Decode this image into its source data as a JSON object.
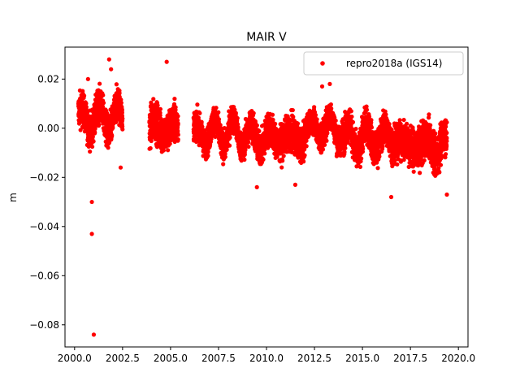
{
  "chart_data": {
    "type": "scatter",
    "title": "MAIR V",
    "xlabel": "",
    "ylabel": "m",
    "xlim": [
      1999.5,
      2020.5
    ],
    "ylim": [
      -0.089,
      0.033
    ],
    "xticks": [
      2000.0,
      2002.5,
      2005.0,
      2007.5,
      2010.0,
      2012.5,
      2015.0,
      2017.5,
      2020.0
    ],
    "xtick_labels": [
      "2000.0",
      "2002.5",
      "2005.0",
      "2007.5",
      "2010.0",
      "2012.5",
      "2015.0",
      "2017.5",
      "2020.0"
    ],
    "yticks": [
      0.02,
      0.0,
      -0.02,
      -0.04,
      -0.06,
      -0.08
    ],
    "ytick_labels": [
      "0.02",
      "0.00",
      "−0.02",
      "−0.04",
      "−0.06",
      "−0.08"
    ],
    "grid": false,
    "legend_position": "top-right",
    "series": [
      {
        "name": "repro2018a (IGS14)",
        "color": "#ff0000",
        "marker": "circle",
        "segments": [
          {
            "start": 2000.2,
            "end": 2002.5,
            "center": 0.004,
            "spread": 0.006
          },
          {
            "start": 2003.9,
            "end": 2005.4,
            "center": 0.0,
            "spread": 0.007
          },
          {
            "start": 2006.2,
            "end": 2009.0,
            "center": -0.002,
            "spread": 0.005
          },
          {
            "start": 2009.0,
            "end": 2012.0,
            "center": -0.004,
            "spread": 0.006
          },
          {
            "start": 2012.0,
            "end": 2014.0,
            "center": 0.0,
            "spread": 0.005
          },
          {
            "start": 2014.0,
            "end": 2017.0,
            "center": -0.004,
            "spread": 0.006
          },
          {
            "start": 2017.0,
            "end": 2019.4,
            "center": -0.007,
            "spread": 0.007
          }
        ],
        "outliers": [
          {
            "x": 2001.0,
            "y": -0.084
          },
          {
            "x": 2000.9,
            "y": -0.043
          },
          {
            "x": 2000.9,
            "y": -0.03
          },
          {
            "x": 2001.8,
            "y": 0.028
          },
          {
            "x": 2001.9,
            "y": 0.024
          },
          {
            "x": 2004.8,
            "y": 0.027
          },
          {
            "x": 2000.7,
            "y": 0.02
          },
          {
            "x": 2012.9,
            "y": 0.017
          },
          {
            "x": 2013.3,
            "y": 0.018
          },
          {
            "x": 2016.5,
            "y": -0.028
          },
          {
            "x": 2019.4,
            "y": -0.027
          },
          {
            "x": 2009.5,
            "y": -0.024
          },
          {
            "x": 2011.5,
            "y": -0.023
          },
          {
            "x": 2002.4,
            "y": -0.016
          }
        ]
      }
    ]
  }
}
